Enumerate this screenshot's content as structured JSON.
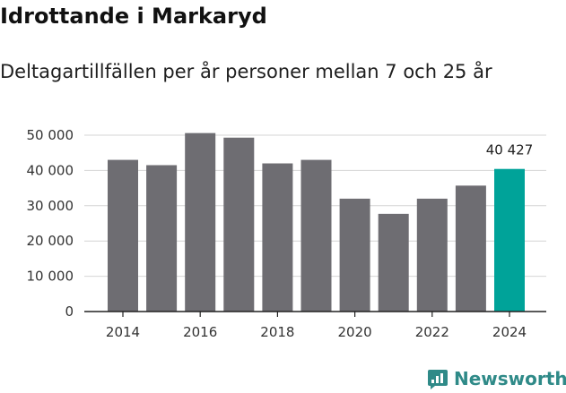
{
  "chart_data": {
    "type": "bar",
    "title": "Idrottande i Markaryd",
    "subtitle": "Deltagartillfällen per år personer mellan 7 och 25 år",
    "categories": [
      "2014",
      "2015",
      "2016",
      "2017",
      "2018",
      "2019",
      "2020",
      "2021",
      "2022",
      "2023",
      "2024"
    ],
    "values": [
      43000,
      41500,
      50600,
      49300,
      42000,
      43000,
      32000,
      27700,
      32000,
      35700,
      40427
    ],
    "x_tick_labels": [
      "2014",
      "2016",
      "2018",
      "2020",
      "2022",
      "2024"
    ],
    "y_ticks": [
      0,
      10000,
      20000,
      30000,
      40000,
      50000
    ],
    "y_tick_labels": [
      "0",
      "10 000",
      "20 000",
      "30 000",
      "40 000",
      "50 000"
    ],
    "ylim": [
      0,
      50000
    ],
    "highlight_index": 10,
    "highlight_label": "40 427",
    "xlabel": "",
    "ylabel": "",
    "grid": true,
    "colors": {
      "bar": "#6e6d72",
      "highlight": "#00a399",
      "grid": "#d4d4d4",
      "axis": "#222222"
    }
  },
  "brand": {
    "name": "Newsworthy",
    "icon": "newsworthy-logo-icon",
    "color": "#2f8a88"
  }
}
